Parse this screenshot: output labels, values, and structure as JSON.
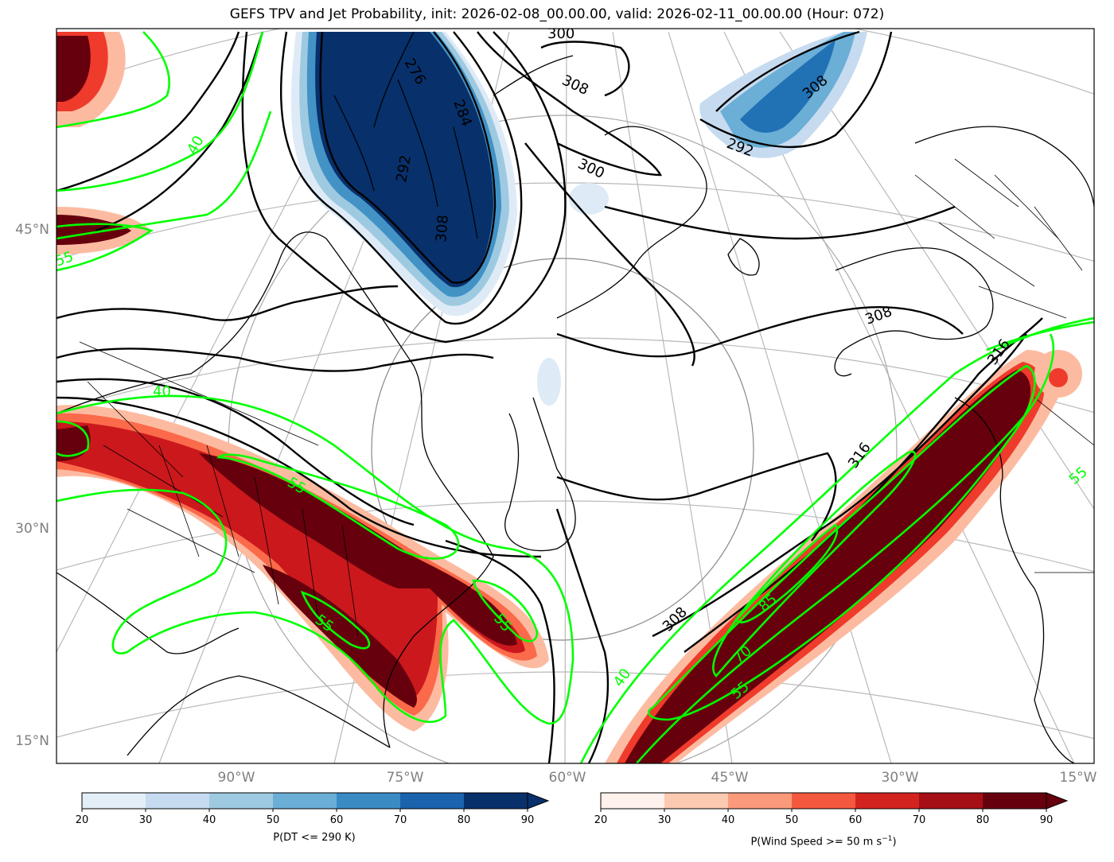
{
  "title": "GEFS TPV and Jet Probability, init: 2026-02-08_00.00.00, valid: 2026-02-11_00.00.00 (Hour: 072)",
  "lat_labels": [
    "45°N",
    "30°N",
    "15°N"
  ],
  "lon_labels": [
    "90°W",
    "75°W",
    "60°W",
    "45°W",
    "30°W",
    "15°W"
  ],
  "contour_labels": {
    "theta": [
      "276",
      "284",
      "292",
      "300",
      "308",
      "308",
      "316",
      "316",
      "292",
      "308",
      "300",
      "308",
      "308"
    ],
    "jet": [
      "40",
      "40",
      "55",
      "55",
      "55",
      "55",
      "55",
      "70",
      "85",
      "55",
      "40"
    ]
  },
  "colorbars": [
    {
      "label": "P(DT <= 290 K)",
      "ticks": [
        "20",
        "30",
        "40",
        "50",
        "60",
        "70",
        "80",
        "90"
      ],
      "colors": [
        "#e3eef9",
        "#c6dbef",
        "#9ecae1",
        "#6baed6",
        "#3a8bc4",
        "#1b63ad",
        "#08306b"
      ]
    },
    {
      "label": "P(Wind Speed >= 50 m s",
      "label_sup": "−1",
      "label_tail": ")",
      "ticks": [
        "20",
        "30",
        "40",
        "50",
        "60",
        "70",
        "80",
        "90"
      ],
      "colors": [
        "#fff1eb",
        "#fcc9b1",
        "#fb9a7b",
        "#f4593f",
        "#d3231f",
        "#a50f15",
        "#67000d"
      ]
    }
  ]
}
